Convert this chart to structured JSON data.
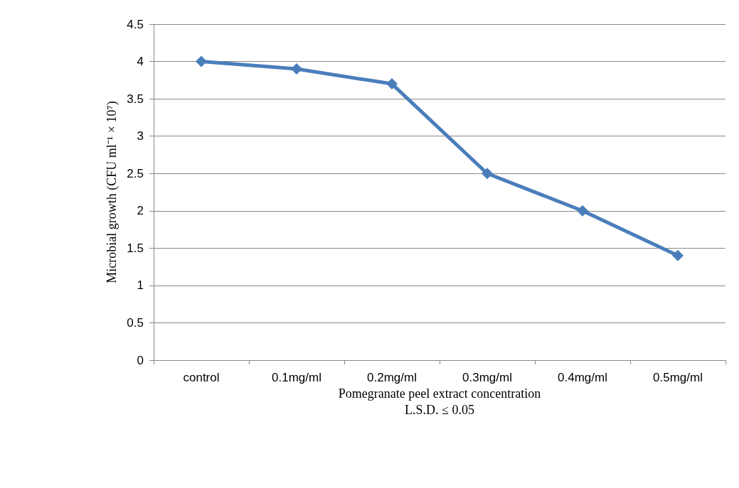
{
  "chart_data": {
    "type": "line",
    "xlabel": "Pomegranate peel extract concentration",
    "ylabel": "Microbial growth (CFU ml⁻¹ × 10⁷)",
    "annotations": [
      "L.S.D. ≤ 0.05"
    ],
    "categories": [
      "control",
      "0.1mg/ml",
      "0.2mg/ml",
      "0.3mg/ml",
      "0.4mg/ml",
      "0.5mg/ml"
    ],
    "series": [
      {
        "color": "#4a7ebb",
        "values": [
          4,
          3.9,
          3.7,
          2.5,
          2.0,
          1.4
        ]
      }
    ],
    "ylim": [
      0,
      4.5
    ],
    "yticks": [
      0,
      0.5,
      1,
      1.5,
      2,
      2.5,
      3,
      3.5,
      4,
      4.5
    ],
    "grid": "y",
    "marker": "diamond",
    "line_style": "solid"
  }
}
